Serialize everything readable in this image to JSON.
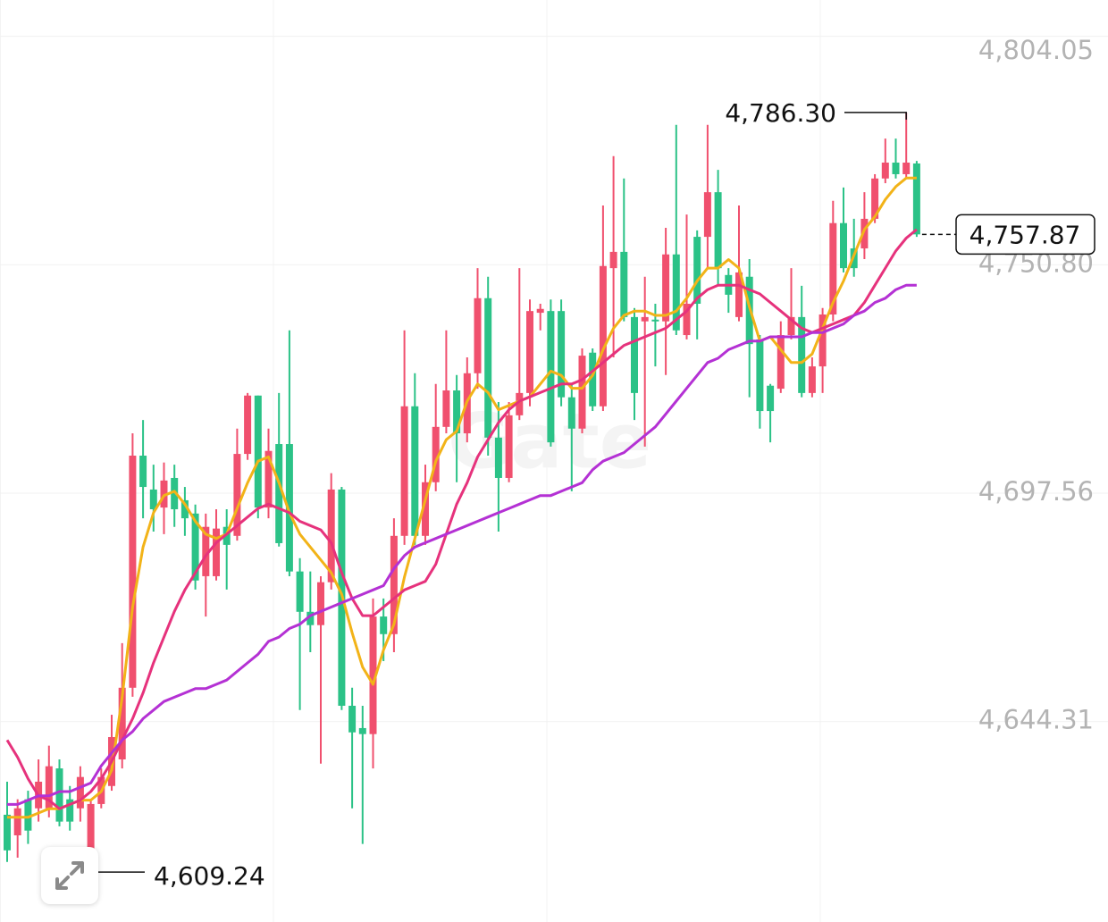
{
  "chart_data": {
    "type": "candlestick",
    "watermark": "Gate",
    "up_color": "#f0506e",
    "down_color": "#2bc287",
    "ylim": [
      4597.6,
      4812.5
    ],
    "yticks": [
      {
        "value": 4804.05,
        "label": "4,804.05"
      },
      {
        "value": 4750.8,
        "label": "4,750.80"
      },
      {
        "value": 4697.56,
        "label": "4,697.56"
      },
      {
        "value": 4644.31,
        "label": "4,644.31"
      }
    ],
    "grid": true,
    "open": [
      4622.6,
      4617.8,
      4626.2,
      4624.1,
      4624.1,
      4633.4,
      4626.2,
      4624.1,
      4610.6,
      4625.1,
      4629.3,
      4635.5,
      4652.2,
      4706.3,
      4698.4,
      4694.2,
      4701.1,
      4695.9,
      4692.8,
      4678.2,
      4678.2,
      4689.7,
      4687.6,
      4706.7,
      4720.3,
      4694.2,
      4709.0,
      4709.0,
      4679.3,
      4669.9,
      4666.8,
      4676.8,
      4698.4,
      4648.0,
      4642.8,
      4641.4,
      4668.8,
      4664.7,
      4687.6,
      4717.8,
      4687.6,
      4700.1,
      4713.0,
      4721.5,
      4711.5,
      4725.5,
      4743.0,
      4710.5,
      4701.1,
      4715.7,
      4720.9,
      4739.6,
      4740.0,
      4740.0,
      4719.9,
      4712.6,
      4730.3,
      4717.8,
      4750.0,
      4753.8,
      4738.6,
      4737.6,
      4738.0,
      4737.6,
      4753.2,
      4734.4,
      4757.3,
      4757.3,
      4767.7,
      4748.4,
      4738.6,
      4748.0,
      4733.4,
      4722.6,
      4721.9,
      4734.4,
      4738.6,
      4720.9,
      4727.1,
      4739.2,
      4760.5,
      4754.6,
      4754.6,
      4761.5,
      4770.9,
      4774.6,
      4771.9,
      4774.4
    ],
    "high": [
      4630.3,
      4626.2,
      4628.2,
      4635.5,
      4638.7,
      4635.5,
      4629.3,
      4633.9,
      4626.2,
      4633.4,
      4645.9,
      4662.6,
      4711.5,
      4714.6,
      4704.2,
      4704.7,
      4704.2,
      4699.0,
      4694.9,
      4692.8,
      4693.8,
      4693.8,
      4712.6,
      4720.9,
      4720.3,
      4712.6,
      4720.9,
      4735.5,
      4682.4,
      4679.3,
      4678.2,
      4702.2,
      4699.0,
      4652.2,
      4648.0,
      4673.0,
      4673.0,
      4691.7,
      4735.5,
      4725.5,
      4704.2,
      4723.0,
      4735.5,
      4725.1,
      4729.2,
      4750.0,
      4748.0,
      4718.8,
      4718.8,
      4750.0,
      4742.7,
      4741.7,
      4742.7,
      4742.7,
      4723.0,
      4731.3,
      4731.3,
      4764.6,
      4776.1,
      4770.9,
      4740.7,
      4748.0,
      4741.7,
      4759.4,
      4783.4,
      4762.5,
      4758.8,
      4783.4,
      4772.9,
      4750.0,
      4764.6,
      4752.1,
      4734.4,
      4723.0,
      4737.6,
      4750.0,
      4745.9,
      4729.2,
      4740.7,
      4765.7,
      4768.8,
      4761.5,
      4767.7,
      4771.9,
      4780.2,
      4780.2,
      4786.3,
      4775.0
    ],
    "low": [
      4611.6,
      4612.6,
      4615.8,
      4621.0,
      4622.0,
      4619.9,
      4618.9,
      4621.0,
      4609.24,
      4624.1,
      4628.2,
      4633.4,
      4650.1,
      4691.7,
      4688.6,
      4688.0,
      4689.7,
      4687.6,
      4675.1,
      4668.8,
      4677.2,
      4675.1,
      4686.5,
      4705.3,
      4691.7,
      4691.7,
      4685.1,
      4678.2,
      4647.0,
      4660.5,
      4634.5,
      4675.1,
      4647.0,
      4624.1,
      4615.8,
      4633.4,
      4658.4,
      4660.5,
      4685.5,
      4685.5,
      4685.5,
      4698.0,
      4711.5,
      4700.1,
      4709.4,
      4721.9,
      4706.3,
      4688.6,
      4700.1,
      4714.6,
      4717.8,
      4735.5,
      4708.4,
      4717.8,
      4698.0,
      4711.5,
      4716.7,
      4716.7,
      4729.2,
      4737.6,
      4714.6,
      4708.4,
      4727.1,
      4725.1,
      4734.4,
      4733.4,
      4733.4,
      4750.0,
      4745.9,
      4739.6,
      4737.6,
      4719.9,
      4712.6,
      4709.4,
      4720.9,
      4733.4,
      4719.9,
      4719.9,
      4720.9,
      4737.6,
      4749.0,
      4748.0,
      4752.1,
      4760.5,
      4769.8,
      4770.9,
      4770.9,
      4757.3
    ],
    "close": [
      4614.3,
      4624.1,
      4618.9,
      4630.3,
      4633.9,
      4621.0,
      4621.0,
      4631.4,
      4625.1,
      4631.4,
      4640.7,
      4652.2,
      4706.3,
      4699.0,
      4693.8,
      4700.5,
      4693.8,
      4691.7,
      4677.2,
      4689.7,
      4689.3,
      4685.5,
      4706.7,
      4720.3,
      4694.2,
      4707.4,
      4685.9,
      4679.3,
      4669.9,
      4666.8,
      4676.8,
      4698.4,
      4648.0,
      4641.8,
      4641.4,
      4668.8,
      4664.7,
      4687.6,
      4717.8,
      4687.6,
      4700.1,
      4713.0,
      4721.5,
      4711.5,
      4725.5,
      4743.0,
      4710.5,
      4701.1,
      4715.7,
      4720.9,
      4740.0,
      4740.5,
      4709.4,
      4719.9,
      4712.6,
      4729.6,
      4717.8,
      4750.5,
      4753.8,
      4738.6,
      4720.9,
      4738.6,
      4737.6,
      4753.2,
      4735.5,
      4741.7,
      4741.7,
      4767.7,
      4750.0,
      4743.8,
      4749.0,
      4732.3,
      4716.7,
      4716.7,
      4734.4,
      4738.6,
      4720.9,
      4727.1,
      4739.2,
      4760.5,
      4750.0,
      4750.0,
      4761.5,
      4770.9,
      4774.6,
      4771.9,
      4774.6,
      4757.87
    ],
    "series": [
      {
        "color": "#f2b318",
        "values": [
          4622,
          4622,
          4622,
          4623,
          4624,
          4624,
          4625,
          4626,
          4626,
          4628,
          4633,
          4650,
          4671,
          4685,
          4693,
          4697,
          4698,
          4695,
          4691,
          4688,
          4687,
          4688,
          4694,
          4700,
          4705,
          4706,
          4700,
          4693,
          4688,
          4685,
          4682,
          4679,
          4674,
          4665,
          4657,
          4653,
          4661,
          4667,
          4678,
          4687,
          4696,
          4705,
          4710,
          4712,
          4719,
          4723,
          4721,
          4717,
          4718,
          4719,
          4720,
          4723,
          4726,
          4725,
          4722,
          4722,
          4725,
          4731,
          4736,
          4739,
          4740,
          4740,
          4739,
          4739,
          4740,
          4743,
          4747,
          4750,
          4750,
          4752,
          4750,
          4741,
          4733,
          4734,
          4731,
          4728,
          4728,
          4730,
          4736,
          4742,
          4747,
          4753,
          4759,
          4762,
          4766,
          4769,
          4771,
          4771
        ]
      },
      {
        "color": "#e6327c",
        "values": [
          4640,
          4636,
          4631,
          4627,
          4626,
          4624,
          4625,
          4626,
          4628,
          4631,
          4635,
          4640,
          4645,
          4651,
          4658,
          4664,
          4670,
          4675,
          4679,
          4683,
          4686,
          4688,
          4690,
          4692,
          4694,
          4695,
          4694,
          4693,
          4691,
          4690,
          4689,
          4686,
          4679,
          4673,
          4669,
          4669,
          4671,
          4673,
          4675,
          4676,
          4677,
          4681,
          4688,
          4695,
          4700,
          4706,
          4710,
          4714,
          4717,
          4719,
          4720,
          4721,
          4722,
          4723,
          4723,
          4724,
          4726,
          4728,
          4730,
          4732,
          4733,
          4734,
          4735,
          4736,
          4738,
          4740,
          4743,
          4745,
          4746,
          4746,
          4746,
          4745,
          4744,
          4742,
          4740,
          4738,
          4736,
          4735,
          4736,
          4737,
          4738,
          4739,
          4742,
          4746,
          4750,
          4754,
          4757,
          4759
        ]
      },
      {
        "color": "#b431d4",
        "values": [
          4625,
          4625,
          4626,
          4627,
          4627,
          4628,
          4628,
          4629,
          4630,
          4634,
          4637,
          4640,
          4642,
          4645,
          4647,
          4649,
          4650,
          4651,
          4652,
          4652,
          4653,
          4654,
          4656,
          4658,
          4660,
          4663,
          4664,
          4666,
          4667,
          4669,
          4670,
          4671,
          4672,
          4673,
          4674,
          4675,
          4676,
          4680,
          4683,
          4685,
          4686,
          4687,
          4688,
          4689,
          4690,
          4691,
          4692,
          4693,
          4694,
          4695,
          4696,
          4697,
          4697,
          4698,
          4699,
          4700,
          4703,
          4705,
          4706,
          4707,
          4709,
          4711,
          4713,
          4716,
          4719,
          4722,
          4725,
          4728,
          4729,
          4731,
          4732,
          4733,
          4733,
          4734,
          4734,
          4734,
          4734,
          4735,
          4735,
          4736,
          4737,
          4739,
          4740,
          4742,
          4743,
          4745,
          4746,
          4746
        ]
      }
    ],
    "max_marker": {
      "value": 4786.3,
      "label": "4,786.30"
    },
    "min_marker": {
      "value": 4609.24,
      "label": "4,609.24"
    },
    "last_price": {
      "value": 4757.87,
      "label": "4,757.87"
    }
  }
}
